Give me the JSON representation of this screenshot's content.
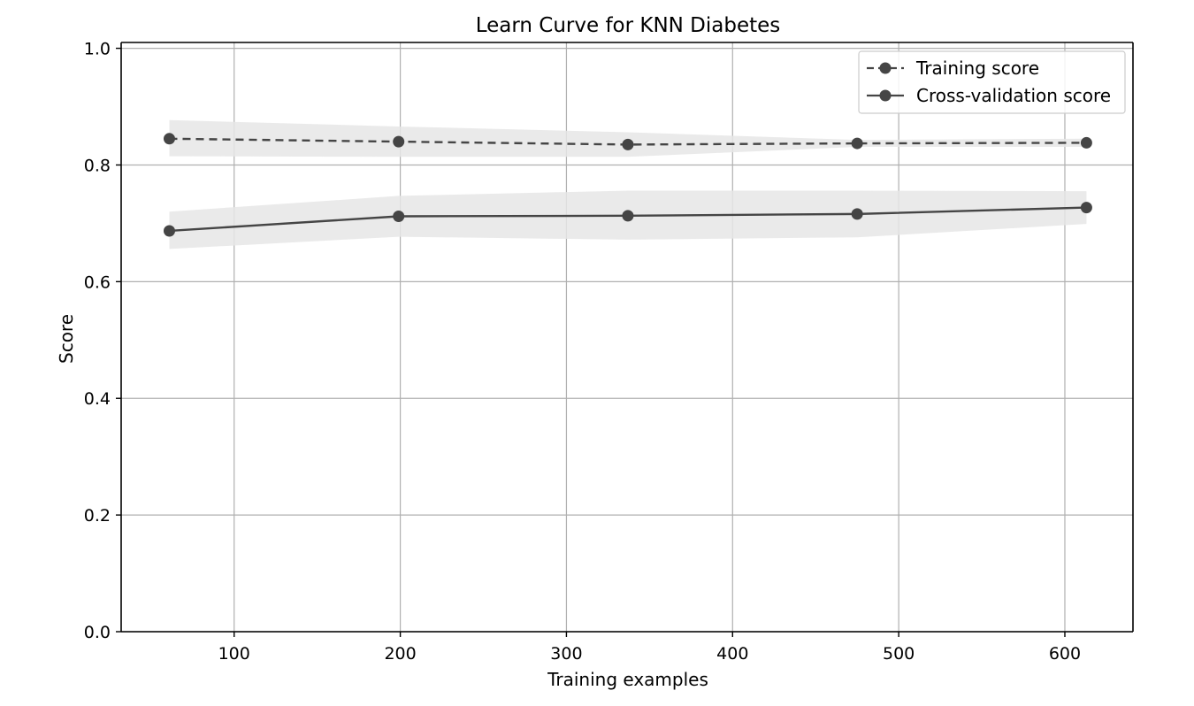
{
  "chart_data": {
    "type": "line",
    "title": "Learn Curve for KNN Diabetes",
    "xlabel": "Training examples",
    "ylabel": "Score",
    "xlim": [
      32,
      641
    ],
    "ylim": [
      0.0,
      1.01
    ],
    "xticks": [
      100,
      200,
      300,
      400,
      500,
      600
    ],
    "xtick_labels": [
      "100",
      "200",
      "300",
      "400",
      "500",
      "600"
    ],
    "yticks": [
      0.0,
      0.2,
      0.4,
      0.6,
      0.8,
      1.0
    ],
    "ytick_labels": [
      "0.0",
      "0.2",
      "0.4",
      "0.6",
      "0.8",
      "1.0"
    ],
    "grid": true,
    "legend_position": "top-right",
    "x": [
      61,
      199,
      337,
      475,
      613
    ],
    "series": [
      {
        "name": "Training score",
        "values": [
          0.845,
          0.84,
          0.835,
          0.837,
          0.838
        ],
        "band_low": [
          0.815,
          0.814,
          0.814,
          0.831,
          0.831
        ],
        "band_high": [
          0.877,
          0.866,
          0.856,
          0.843,
          0.845
        ],
        "style": "dashed",
        "color": "#454545",
        "band_color": "#e6e6e6"
      },
      {
        "name": "Cross-validation score",
        "values": [
          0.687,
          0.712,
          0.713,
          0.716,
          0.727
        ],
        "band_low": [
          0.656,
          0.677,
          0.672,
          0.676,
          0.699
        ],
        "band_high": [
          0.72,
          0.747,
          0.756,
          0.756,
          0.755
        ],
        "style": "solid",
        "color": "#454545",
        "band_color": "#e6e6e6"
      }
    ]
  }
}
